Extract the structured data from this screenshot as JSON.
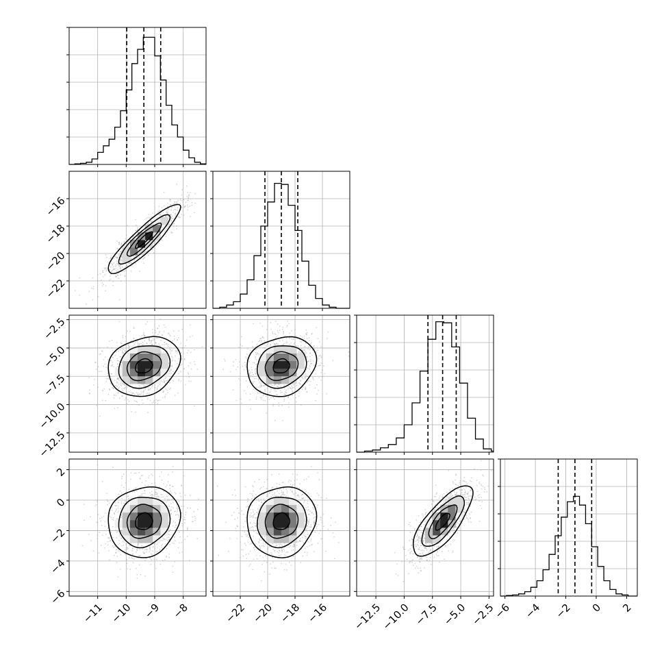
{
  "chart_data": {
    "type": "corner",
    "parameters": [
      {
        "ticks": [
          "−11",
          "−10",
          "−9",
          "−8"
        ],
        "tick_values": [
          -11,
          -10,
          -9,
          -8
        ],
        "range": [
          -12.0,
          -7.2
        ],
        "hist_y_top": 0.125,
        "hist_y_ticks": [
          0.025,
          0.05,
          0.075,
          0.1,
          0.125
        ],
        "hist_bins": [
          -12.0,
          -11.8,
          -11.6,
          -11.4,
          -11.2,
          -11.0,
          -10.8,
          -10.6,
          -10.4,
          -10.2,
          -10.0,
          -9.8,
          -9.6,
          -9.4,
          -9.2,
          -9.0,
          -8.8,
          -8.6,
          -8.4,
          -8.2,
          -8.0,
          -7.8,
          -7.6,
          -7.4,
          -7.2
        ],
        "hist_counts": [
          0.0,
          0.0005,
          0.001,
          0.002,
          0.005,
          0.011,
          0.017,
          0.023,
          0.034,
          0.049,
          0.068,
          0.092,
          0.105,
          0.116,
          0.116,
          0.099,
          0.077,
          0.054,
          0.036,
          0.025,
          0.013,
          0.006,
          0.002,
          0.0005
        ],
        "quantiles": [
          -9.98,
          -9.38,
          -8.79
        ]
      },
      {
        "ticks": [
          "−22",
          "−20",
          "−18",
          "−16"
        ],
        "tick_values": [
          -22,
          -20,
          -18,
          -16
        ],
        "range": [
          -24.0,
          -14.0
        ],
        "hist_y_top": 0.125,
        "hist_y_ticks": [
          0.025,
          0.05,
          0.075,
          0.1,
          0.125
        ],
        "hist_bins": [
          -24.0,
          -23.5,
          -23.0,
          -22.5,
          -22.0,
          -21.5,
          -21.0,
          -20.5,
          -20.0,
          -19.5,
          -19.0,
          -18.5,
          -18.0,
          -17.5,
          -17.0,
          -16.5,
          -16.0,
          -15.5,
          -15.0,
          -14.5,
          -14.0
        ],
        "hist_counts": [
          0.0,
          0.001,
          0.003,
          0.006,
          0.013,
          0.026,
          0.048,
          0.075,
          0.097,
          0.114,
          0.113,
          0.094,
          0.071,
          0.043,
          0.021,
          0.009,
          0.003,
          0.001,
          0.0,
          0.0
        ],
        "quantiles": [
          -20.2,
          -19.0,
          -17.8
        ]
      },
      {
        "ticks": [
          "−12.5",
          "−10.0",
          "−7.5",
          "−5.0",
          "−2.5"
        ],
        "tick_values": [
          -12.5,
          -10.0,
          -7.5,
          -5.0,
          -2.5
        ],
        "range": [
          -14.2,
          -2.1
        ],
        "hist_y_top": 0.125,
        "hist_y_ticks": [
          0.025,
          0.05,
          0.075,
          0.1,
          0.125
        ],
        "hist_bins": [
          -14.2,
          -13.5,
          -12.8,
          -12.1,
          -11.4,
          -10.7,
          -10.0,
          -9.3,
          -8.6,
          -7.9,
          -7.2,
          -6.5,
          -5.8,
          -5.1,
          -4.4,
          -3.7,
          -3.0,
          -2.3,
          -2.1
        ],
        "hist_counts": [
          0.0,
          0.001,
          0.002,
          0.004,
          0.007,
          0.013,
          0.025,
          0.045,
          0.074,
          0.103,
          0.119,
          0.118,
          0.096,
          0.063,
          0.031,
          0.012,
          0.003,
          0.001
        ],
        "quantiles": [
          -7.9,
          -6.6,
          -5.4
        ]
      },
      {
        "ticks": [
          "−6",
          "−4",
          "−2",
          "0",
          "2"
        ],
        "tick_values": [
          -6,
          -4,
          -2,
          0,
          2
        ],
        "range": [
          -6.3,
          2.7
        ],
        "hist_y_top": 0.125,
        "hist_y_ticks": [
          0.025,
          0.05,
          0.075,
          0.1,
          0.125
        ],
        "hist_bins": [
          -6.3,
          -5.9,
          -5.5,
          -5.1,
          -4.7,
          -4.3,
          -3.9,
          -3.5,
          -3.1,
          -2.7,
          -2.3,
          -1.9,
          -1.5,
          -1.1,
          -0.7,
          -0.3,
          0.1,
          0.5,
          0.9,
          1.3,
          1.7,
          2.1,
          2.5,
          2.7
        ],
        "hist_counts": [
          0.0,
          0.0005,
          0.001,
          0.002,
          0.004,
          0.008,
          0.014,
          0.024,
          0.038,
          0.055,
          0.072,
          0.086,
          0.091,
          0.083,
          0.066,
          0.045,
          0.027,
          0.014,
          0.006,
          0.002,
          0.001,
          0.0,
          0.0
        ],
        "quantiles": [
          -2.5,
          -1.4,
          -0.3
        ]
      }
    ],
    "pairs": [
      {
        "row": 1,
        "col": 0,
        "center": [
          -9.38,
          -19.0
        ],
        "sd": [
          0.6,
          1.2
        ],
        "rho": 0.9
      },
      {
        "row": 2,
        "col": 0,
        "center": [
          -9.38,
          -6.6
        ],
        "sd": [
          0.6,
          1.25
        ],
        "rho": 0.2
      },
      {
        "row": 2,
        "col": 1,
        "center": [
          -19.0,
          -6.6
        ],
        "sd": [
          1.2,
          1.25
        ],
        "rho": 0.15
      },
      {
        "row": 3,
        "col": 0,
        "center": [
          -9.38,
          -1.4
        ],
        "sd": [
          0.6,
          1.1
        ],
        "rho": 0.1
      },
      {
        "row": 3,
        "col": 1,
        "center": [
          -19.0,
          -1.4
        ],
        "sd": [
          1.2,
          1.1
        ],
        "rho": 0.08
      },
      {
        "row": 3,
        "col": 2,
        "center": [
          -6.6,
          -1.4
        ],
        "sd": [
          1.25,
          1.1
        ],
        "rho": 0.75
      }
    ],
    "contour_levels_sigma": [
      0.5,
      1.0,
      1.5,
      2.0
    ],
    "scatter_color": "#b0b0b0",
    "grid": true,
    "colors": {
      "ink": "#000000",
      "grid": "#b0b0b0",
      "frame": "#000000"
    }
  }
}
